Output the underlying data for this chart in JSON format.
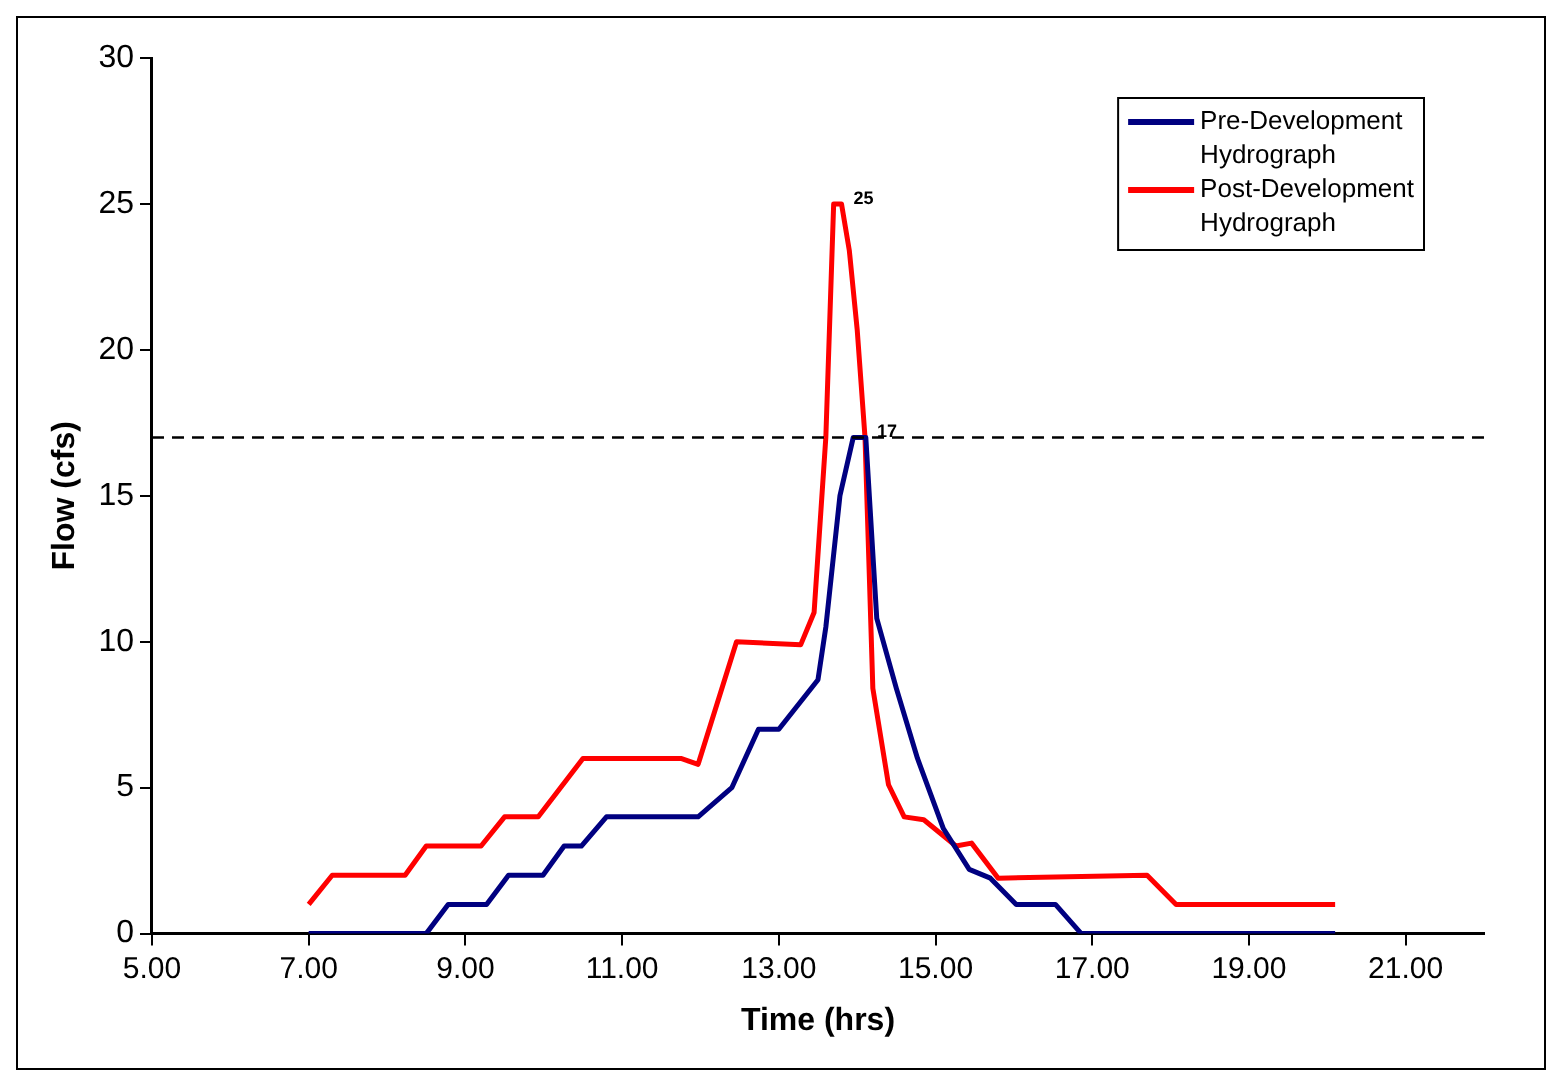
{
  "chart_data": {
    "type": "line",
    "xlabel": "Time (hrs)",
    "ylabel": "Flow (cfs)",
    "xlim": [
      5,
      22
    ],
    "xticks": [
      {
        "value": 5,
        "label": "5.00"
      },
      {
        "value": 7,
        "label": "7.00"
      },
      {
        "value": 9,
        "label": "9.00"
      },
      {
        "value": 11,
        "label": "11.00"
      },
      {
        "value": 13,
        "label": "13.00"
      },
      {
        "value": 15,
        "label": "15.00"
      },
      {
        "value": 17,
        "label": "17.00"
      },
      {
        "value": 19,
        "label": "19.00"
      },
      {
        "value": 21,
        "label": "21.00"
      }
    ],
    "ylim": [
      0,
      30
    ],
    "yticks": [
      0,
      5,
      10,
      15,
      20,
      25,
      30
    ],
    "grid": false,
    "legend": "top right",
    "marker": "none",
    "line_style": "solid",
    "series": [
      {
        "name": "Pre-Development Hydrograph",
        "color": "#000080",
        "x": [
          7,
          8.5,
          8.78,
          9.27,
          9.55,
          9.99,
          10.26,
          10.48,
          10.8,
          11.97,
          12.4,
          12.74,
          13.0,
          13.5,
          13.6,
          13.78,
          13.95,
          14.11,
          14.25,
          14.5,
          14.77,
          15.1,
          15.43,
          15.7,
          16.03,
          16.53,
          16.86,
          20.1
        ],
        "values": [
          0,
          0,
          1,
          1,
          2,
          2,
          3,
          3,
          4,
          4,
          5,
          7,
          7,
          8.7,
          10.5,
          15,
          17,
          17,
          10.8,
          8.4,
          6,
          3.6,
          2.2,
          1.9,
          1,
          1,
          0,
          0
        ]
      },
      {
        "name": "Post-Development Hydrograph",
        "color": "#ff0000",
        "x": [
          7,
          7.3,
          8.23,
          8.5,
          9.2,
          9.5,
          9.93,
          10.5,
          11.75,
          11.97,
          12.46,
          13.28,
          13.45,
          13.6,
          13.7,
          13.8,
          13.9,
          14.0,
          14.1,
          14.2,
          14.4,
          14.6,
          14.85,
          15.26,
          15.46,
          15.8,
          17.7,
          18.07,
          20.1
        ],
        "values": [
          1,
          2,
          2,
          3,
          3,
          4,
          4,
          6,
          6,
          5.8,
          10,
          9.9,
          11,
          17,
          25,
          25,
          23.4,
          20.7,
          17,
          8.4,
          5.1,
          4,
          3.9,
          3,
          3.1,
          1.9,
          2,
          1,
          1
        ]
      }
    ],
    "ref_lines": [
      {
        "axis": "y",
        "value": 17,
        "color": "#000000",
        "line_style": "dashed"
      }
    ],
    "annotations": [
      {
        "text": "25",
        "x": 13.8,
        "y": 25
      },
      {
        "text": "17",
        "x": 14.1,
        "y": 17
      }
    ]
  }
}
